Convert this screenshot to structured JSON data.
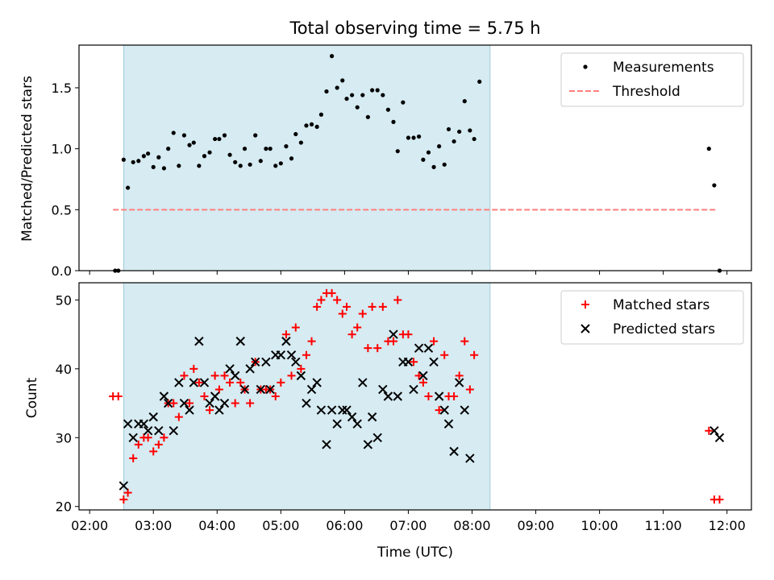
{
  "chart_data": [
    {
      "type": "scatter",
      "title": "Total observing time = 5.75 h",
      "xlabel": "",
      "ylabel": "Matched/Predicted stars",
      "ylim": [
        0,
        1.85
      ],
      "yticks": [
        "0.0",
        "0.5",
        "1.0",
        "1.5"
      ],
      "shaded_interval": [
        "02:32",
        "08:17"
      ],
      "legend": {
        "placement": "top-right",
        "entries": [
          {
            "label": "Measurements",
            "style": "dot",
            "color": "#000000"
          },
          {
            "label": "Threshold",
            "style": "dashed-line",
            "color": "#ff7f7f"
          }
        ]
      },
      "series": [
        {
          "name": "Measurements",
          "color": "#000000",
          "points": [
            [
              "02:24",
              0.0
            ],
            [
              "02:27",
              0.0
            ],
            [
              "02:32",
              0.91
            ],
            [
              "02:36",
              0.68
            ],
            [
              "02:41",
              0.89
            ],
            [
              "02:46",
              0.9
            ],
            [
              "02:51",
              0.94
            ],
            [
              "02:55",
              0.96
            ],
            [
              "03:00",
              0.85
            ],
            [
              "03:05",
              0.93
            ],
            [
              "03:10",
              0.84
            ],
            [
              "03:14",
              1.0
            ],
            [
              "03:19",
              1.13
            ],
            [
              "03:24",
              0.86
            ],
            [
              "03:29",
              1.11
            ],
            [
              "03:34",
              1.03
            ],
            [
              "03:38",
              1.05
            ],
            [
              "03:43",
              0.86
            ],
            [
              "03:48",
              0.94
            ],
            [
              "03:53",
              0.97
            ],
            [
              "03:58",
              1.08
            ],
            [
              "04:02",
              1.08
            ],
            [
              "04:07",
              1.11
            ],
            [
              "04:12",
              0.95
            ],
            [
              "04:17",
              0.89
            ],
            [
              "04:22",
              0.86
            ],
            [
              "04:26",
              1.0
            ],
            [
              "04:31",
              0.87
            ],
            [
              "04:36",
              1.11
            ],
            [
              "04:41",
              0.9
            ],
            [
              "04:46",
              1.0
            ],
            [
              "04:50",
              1.0
            ],
            [
              "04:55",
              0.86
            ],
            [
              "05:00",
              0.88
            ],
            [
              "05:05",
              1.02
            ],
            [
              "05:10",
              0.92
            ],
            [
              "05:14",
              1.12
            ],
            [
              "05:19",
              1.05
            ],
            [
              "05:24",
              1.19
            ],
            [
              "05:29",
              1.2
            ],
            [
              "05:34",
              1.18
            ],
            [
              "05:38",
              1.28
            ],
            [
              "05:43",
              1.47
            ],
            [
              "05:48",
              1.76
            ],
            [
              "05:53",
              1.5
            ],
            [
              "05:58",
              1.56
            ],
            [
              "06:02",
              1.41
            ],
            [
              "06:07",
              1.44
            ],
            [
              "06:12",
              1.34
            ],
            [
              "06:17",
              1.44
            ],
            [
              "06:22",
              1.26
            ],
            [
              "06:26",
              1.48
            ],
            [
              "06:31",
              1.48
            ],
            [
              "06:36",
              1.44
            ],
            [
              "06:41",
              1.32
            ],
            [
              "06:46",
              1.22
            ],
            [
              "06:50",
              0.98
            ],
            [
              "06:55",
              1.38
            ],
            [
              "07:00",
              1.09
            ],
            [
              "07:05",
              1.09
            ],
            [
              "07:10",
              1.1
            ],
            [
              "07:14",
              0.91
            ],
            [
              "07:19",
              0.97
            ],
            [
              "07:24",
              0.85
            ],
            [
              "07:29",
              1.02
            ],
            [
              "07:34",
              0.87
            ],
            [
              "07:38",
              1.16
            ],
            [
              "07:43",
              1.06
            ],
            [
              "07:48",
              1.14
            ],
            [
              "07:53",
              1.39
            ],
            [
              "07:58",
              1.15
            ],
            [
              "08:02",
              1.08
            ],
            [
              "08:07",
              1.55
            ],
            [
              "11:43",
              1.0
            ],
            [
              "11:48",
              0.7
            ],
            [
              "11:53",
              0.0
            ]
          ]
        },
        {
          "name": "Threshold",
          "color": "#ff7f7f",
          "points": [
            [
              "02:22",
              0.5
            ],
            [
              "11:50",
              0.5
            ]
          ]
        }
      ]
    },
    {
      "type": "scatter",
      "title": "",
      "xlabel": "Time (UTC)",
      "ylabel": "Count",
      "ylim": [
        19.5,
        52.5
      ],
      "yticks": [
        "20",
        "30",
        "40",
        "50"
      ],
      "xlim": [
        "01:50",
        "12:23"
      ],
      "xticks": [
        "02:00",
        "03:00",
        "04:00",
        "05:00",
        "06:00",
        "07:00",
        "08:00",
        "09:00",
        "10:00",
        "11:00",
        "12:00"
      ],
      "shaded_interval": [
        "02:32",
        "08:17"
      ],
      "legend": {
        "placement": "top-right",
        "entries": [
          {
            "label": "Matched stars",
            "style": "plus",
            "color": "#ff0000"
          },
          {
            "label": "Predicted stars",
            "style": "x",
            "color": "#000000"
          }
        ]
      },
      "series": [
        {
          "name": "Matched stars",
          "color": "#ff0000",
          "points": [
            [
              "02:22",
              36
            ],
            [
              "02:27",
              36
            ],
            [
              "02:32",
              21
            ],
            [
              "02:36",
              22
            ],
            [
              "02:41",
              27
            ],
            [
              "02:46",
              29
            ],
            [
              "02:51",
              30
            ],
            [
              "02:55",
              30
            ],
            [
              "03:00",
              28
            ],
            [
              "03:05",
              29
            ],
            [
              "03:10",
              30
            ],
            [
              "03:14",
              35
            ],
            [
              "03:19",
              35
            ],
            [
              "03:24",
              33
            ],
            [
              "03:29",
              39
            ],
            [
              "03:34",
              35
            ],
            [
              "03:38",
              40
            ],
            [
              "03:43",
              38
            ],
            [
              "03:48",
              36
            ],
            [
              "03:53",
              34
            ],
            [
              "03:58",
              39
            ],
            [
              "04:02",
              37
            ],
            [
              "04:07",
              39
            ],
            [
              "04:12",
              38
            ],
            [
              "04:17",
              35
            ],
            [
              "04:22",
              38
            ],
            [
              "04:26",
              37
            ],
            [
              "04:31",
              35
            ],
            [
              "04:36",
              41
            ],
            [
              "04:41",
              37
            ],
            [
              "04:46",
              37
            ],
            [
              "04:50",
              37
            ],
            [
              "04:55",
              36
            ],
            [
              "05:00",
              38
            ],
            [
              "05:05",
              45
            ],
            [
              "05:10",
              39
            ],
            [
              "05:14",
              46
            ],
            [
              "05:19",
              40
            ],
            [
              "05:24",
              42
            ],
            [
              "05:29",
              44
            ],
            [
              "05:34",
              49
            ],
            [
              "05:38",
              50
            ],
            [
              "05:43",
              51
            ],
            [
              "05:48",
              51
            ],
            [
              "05:53",
              50
            ],
            [
              "05:58",
              48
            ],
            [
              "06:02",
              49
            ],
            [
              "06:07",
              45
            ],
            [
              "06:12",
              46
            ],
            [
              "06:17",
              48
            ],
            [
              "06:22",
              43
            ],
            [
              "06:26",
              49
            ],
            [
              "06:31",
              43
            ],
            [
              "06:36",
              49
            ],
            [
              "06:41",
              44
            ],
            [
              "06:46",
              44
            ],
            [
              "06:50",
              50
            ],
            [
              "06:55",
              45
            ],
            [
              "07:00",
              45
            ],
            [
              "07:05",
              41
            ],
            [
              "07:10",
              39
            ],
            [
              "07:14",
              38
            ],
            [
              "07:19",
              36
            ],
            [
              "07:24",
              44
            ],
            [
              "07:29",
              34
            ],
            [
              "07:34",
              42
            ],
            [
              "07:38",
              36
            ],
            [
              "07:43",
              36
            ],
            [
              "07:48",
              39
            ],
            [
              "07:53",
              44
            ],
            [
              "07:58",
              37
            ],
            [
              "08:02",
              42
            ],
            [
              "11:43",
              31
            ],
            [
              "11:48",
              21
            ],
            [
              "11:53",
              21
            ]
          ]
        },
        {
          "name": "Predicted stars",
          "color": "#000000",
          "points": [
            [
              "02:32",
              23
            ],
            [
              "02:36",
              32
            ],
            [
              "02:41",
              30
            ],
            [
              "02:46",
              32
            ],
            [
              "02:51",
              32
            ],
            [
              "02:55",
              31
            ],
            [
              "03:00",
              33
            ],
            [
              "03:05",
              31
            ],
            [
              "03:10",
              36
            ],
            [
              "03:14",
              35
            ],
            [
              "03:19",
              31
            ],
            [
              "03:24",
              38
            ],
            [
              "03:29",
              35
            ],
            [
              "03:34",
              34
            ],
            [
              "03:38",
              38
            ],
            [
              "03:43",
              44
            ],
            [
              "03:48",
              38
            ],
            [
              "03:53",
              35
            ],
            [
              "03:58",
              36
            ],
            [
              "04:02",
              34
            ],
            [
              "04:07",
              35
            ],
            [
              "04:12",
              40
            ],
            [
              "04:17",
              39
            ],
            [
              "04:22",
              44
            ],
            [
              "04:26",
              37
            ],
            [
              "04:31",
              40
            ],
            [
              "04:36",
              41
            ],
            [
              "04:41",
              37
            ],
            [
              "04:46",
              41
            ],
            [
              "04:50",
              37
            ],
            [
              "04:55",
              42
            ],
            [
              "05:00",
              42
            ],
            [
              "05:05",
              44
            ],
            [
              "05:10",
              42
            ],
            [
              "05:14",
              41
            ],
            [
              "05:19",
              39
            ],
            [
              "05:24",
              35
            ],
            [
              "05:29",
              37
            ],
            [
              "05:34",
              38
            ],
            [
              "05:38",
              34
            ],
            [
              "05:43",
              29
            ],
            [
              "05:48",
              34
            ],
            [
              "05:53",
              32
            ],
            [
              "05:58",
              34
            ],
            [
              "06:02",
              34
            ],
            [
              "06:07",
              33
            ],
            [
              "06:12",
              32
            ],
            [
              "06:17",
              38
            ],
            [
              "06:22",
              29
            ],
            [
              "06:26",
              33
            ],
            [
              "06:31",
              30
            ],
            [
              "06:36",
              37
            ],
            [
              "06:41",
              36
            ],
            [
              "06:46",
              45
            ],
            [
              "06:50",
              36
            ],
            [
              "06:55",
              41
            ],
            [
              "07:00",
              41
            ],
            [
              "07:05",
              37
            ],
            [
              "07:10",
              43
            ],
            [
              "07:14",
              39
            ],
            [
              "07:19",
              43
            ],
            [
              "07:24",
              41
            ],
            [
              "07:29",
              36
            ],
            [
              "07:34",
              34
            ],
            [
              "07:38",
              32
            ],
            [
              "07:43",
              28
            ],
            [
              "07:48",
              38
            ],
            [
              "07:53",
              34
            ],
            [
              "07:58",
              27
            ],
            [
              "11:48",
              31
            ],
            [
              "11:53",
              30
            ]
          ]
        }
      ]
    }
  ]
}
